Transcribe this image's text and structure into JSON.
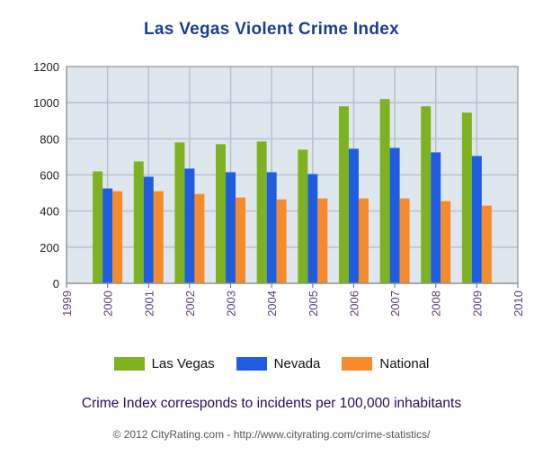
{
  "chart_data": {
    "type": "bar",
    "title": "Las Vegas Violent Crime Index",
    "x_ticks": [
      "1999",
      "2000",
      "2001",
      "2002",
      "2003",
      "2004",
      "2005",
      "2006",
      "2007",
      "2008",
      "2009",
      "2010"
    ],
    "categories": [
      "2000",
      "2001",
      "2002",
      "2003",
      "2004",
      "2005",
      "2006",
      "2007",
      "2008",
      "2009"
    ],
    "series": [
      {
        "name": "Las Vegas",
        "color": "#7db320",
        "values": [
          620,
          675,
          780,
          770,
          785,
          740,
          980,
          1020,
          980,
          945
        ]
      },
      {
        "name": "Nevada",
        "color": "#1f5de0",
        "values": [
          525,
          590,
          635,
          615,
          615,
          605,
          745,
          750,
          725,
          705
        ]
      },
      {
        "name": "National",
        "color": "#f68b2c",
        "values": [
          510,
          510,
          495,
          475,
          465,
          470,
          470,
          470,
          455,
          430
        ]
      }
    ],
    "ylim": [
      0,
      1200
    ],
    "y_ticks": [
      0,
      200,
      400,
      600,
      800,
      1000,
      1200
    ],
    "grid": true,
    "legend": "bottom",
    "xlabel": "",
    "ylabel": "",
    "colors": {
      "plot_background": "#dfe7ee",
      "grid": "#b7bfd2",
      "axis_text": "#5b3f7a",
      "title": "#1a3f8f"
    }
  },
  "note": "Crime Index corresponds to incidents per 100,000 inhabitants",
  "footer": "© 2012 CityRating.com - http://www.cityrating.com/crime-statistics/"
}
